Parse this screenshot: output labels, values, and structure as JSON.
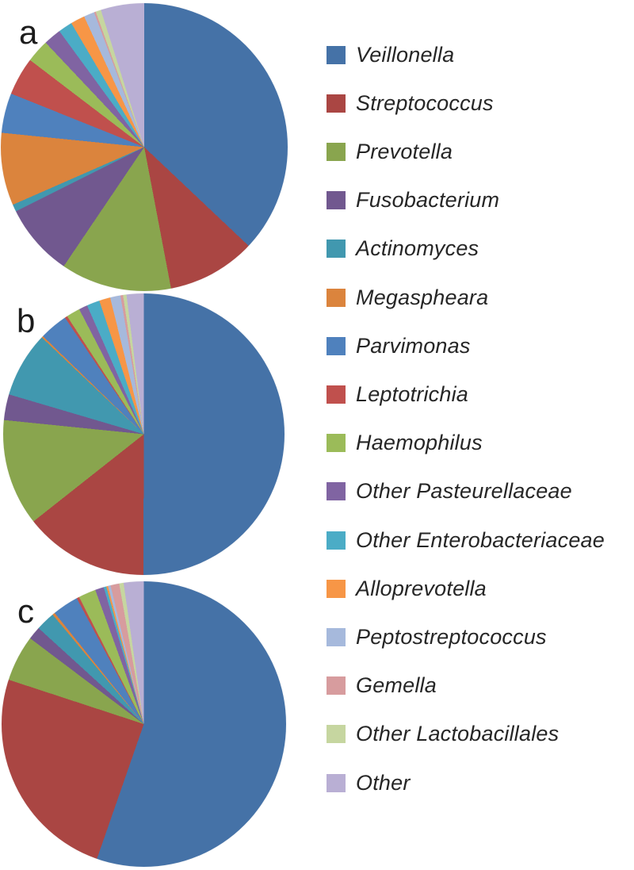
{
  "figure": {
    "background": "#ffffff",
    "panels": [
      {
        "label": "a"
      },
      {
        "label": "b"
      },
      {
        "label": "c"
      }
    ]
  },
  "legend": {
    "position": "right",
    "items": [
      {
        "label": "Veillonella",
        "color": "#4572A7"
      },
      {
        "label": "Streptococcus",
        "color": "#AA4643"
      },
      {
        "label": "Prevotella",
        "color": "#89A54E"
      },
      {
        "label": "Fusobacterium",
        "color": "#71588F"
      },
      {
        "label": "Actinomyces",
        "color": "#4198AF"
      },
      {
        "label": "Megaspheara",
        "color": "#DB843D"
      },
      {
        "label": "Parvimonas",
        "color": "#4F81BD"
      },
      {
        "label": "Leptotrichia",
        "color": "#C0504D"
      },
      {
        "label": "Haemophilus",
        "color": "#9BBB59"
      },
      {
        "label": "Other Pasteurellaceae",
        "color": "#8064A2"
      },
      {
        "label": "Other Enterobacteriaceae",
        "color": "#4BACC6"
      },
      {
        "label": "Alloprevotella",
        "color": "#F79646"
      },
      {
        "label": "Peptostreptococcus",
        "color": "#A6B9DC"
      },
      {
        "label": "Gemella",
        "color": "#D79C9E"
      },
      {
        "label": "Other Lactobacillales",
        "color": "#C6D6A0"
      },
      {
        "label": "Other",
        "color": "#B9AFD4"
      }
    ]
  },
  "chart_data": [
    {
      "type": "pie",
      "panel": "a",
      "unit": "percent",
      "start_angle_deg": 0,
      "direction": "clockwise",
      "legend_position": "right",
      "categories": [
        "Veillonella",
        "Streptococcus",
        "Prevotella",
        "Fusobacterium",
        "Actinomyces",
        "Megaspheara",
        "Parvimonas",
        "Leptotrichia",
        "Haemophilus",
        "Other Pasteurellaceae",
        "Other Enterobacteriaceae",
        "Alloprevotella",
        "Peptostreptococcus",
        "Gemella",
        "Other Lactobacillales",
        "Other"
      ],
      "values": [
        37.2,
        10.0,
        12.5,
        8.2,
        0.8,
        8.2,
        4.5,
        4.3,
        2.6,
        2.0,
        1.6,
        1.6,
        1.2,
        0.2,
        0.6,
        4.9
      ]
    },
    {
      "type": "pie",
      "panel": "b",
      "unit": "percent",
      "start_angle_deg": 0,
      "direction": "clockwise",
      "legend_position": "right",
      "categories": [
        "Veillonella",
        "Streptococcus",
        "Prevotella",
        "Fusobacterium",
        "Actinomyces",
        "Megaspheara",
        "Parvimonas",
        "Leptotrichia",
        "Haemophilus",
        "Other Pasteurellaceae",
        "Other Enterobacteriaceae",
        "Alloprevotella",
        "Peptostreptococcus",
        "Gemella",
        "Other Lactobacillales",
        "Other"
      ],
      "values": [
        50.7,
        14.5,
        12.4,
        3.0,
        7.6,
        0.2,
        3.3,
        0.3,
        1.6,
        1.0,
        1.5,
        1.3,
        1.2,
        0.3,
        0.4,
        2.0
      ]
    },
    {
      "type": "pie",
      "panel": "c",
      "unit": "percent",
      "start_angle_deg": 0,
      "direction": "clockwise",
      "legend_position": "right",
      "categories": [
        "Veillonella",
        "Streptococcus",
        "Prevotella",
        "Fusobacterium",
        "Actinomyces",
        "Megaspheara",
        "Parvimonas",
        "Leptotrichia",
        "Haemophilus",
        "Other Pasteurellaceae",
        "Other Enterobacteriaceae",
        "Alloprevotella",
        "Peptostreptococcus",
        "Gemella",
        "Other Lactobacillales",
        "Other"
      ],
      "values": [
        56.0,
        25.0,
        5.3,
        1.5,
        2.2,
        0.3,
        3.0,
        0.3,
        2.0,
        1.0,
        0.3,
        0.2,
        0.3,
        1.0,
        0.5,
        2.3
      ]
    }
  ]
}
